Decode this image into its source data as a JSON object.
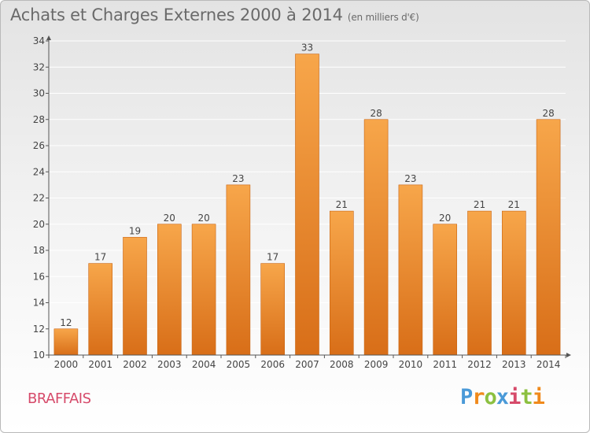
{
  "header": {
    "title": "Achats et Charges Externes 2000 à 2014",
    "subtitle": "(en milliers d'€)"
  },
  "footer": {
    "commune": "BRAFFAIS",
    "brand_letters": [
      "P",
      "r",
      "o",
      "x",
      "i",
      "t",
      "i"
    ]
  },
  "colors": {
    "bar_top": "#f7a64a",
    "bar_bottom": "#d86e18",
    "bar_stroke": "#c96412",
    "grid": "#ffffff",
    "axis": "#555555",
    "text": "#444444"
  },
  "chart_data": {
    "type": "bar",
    "categories": [
      "2000",
      "2001",
      "2002",
      "2003",
      "2004",
      "2005",
      "2006",
      "2007",
      "2008",
      "2009",
      "2010",
      "2011",
      "2012",
      "2013",
      "2014"
    ],
    "values": [
      12,
      17,
      19,
      20,
      20,
      23,
      17,
      33,
      21,
      28,
      23,
      20,
      21,
      21,
      28
    ],
    "ylim": [
      10,
      34
    ],
    "yticks": [
      10,
      12,
      14,
      16,
      18,
      20,
      22,
      24,
      26,
      28,
      30,
      32,
      34
    ],
    "grid": true,
    "data_labels": true
  }
}
